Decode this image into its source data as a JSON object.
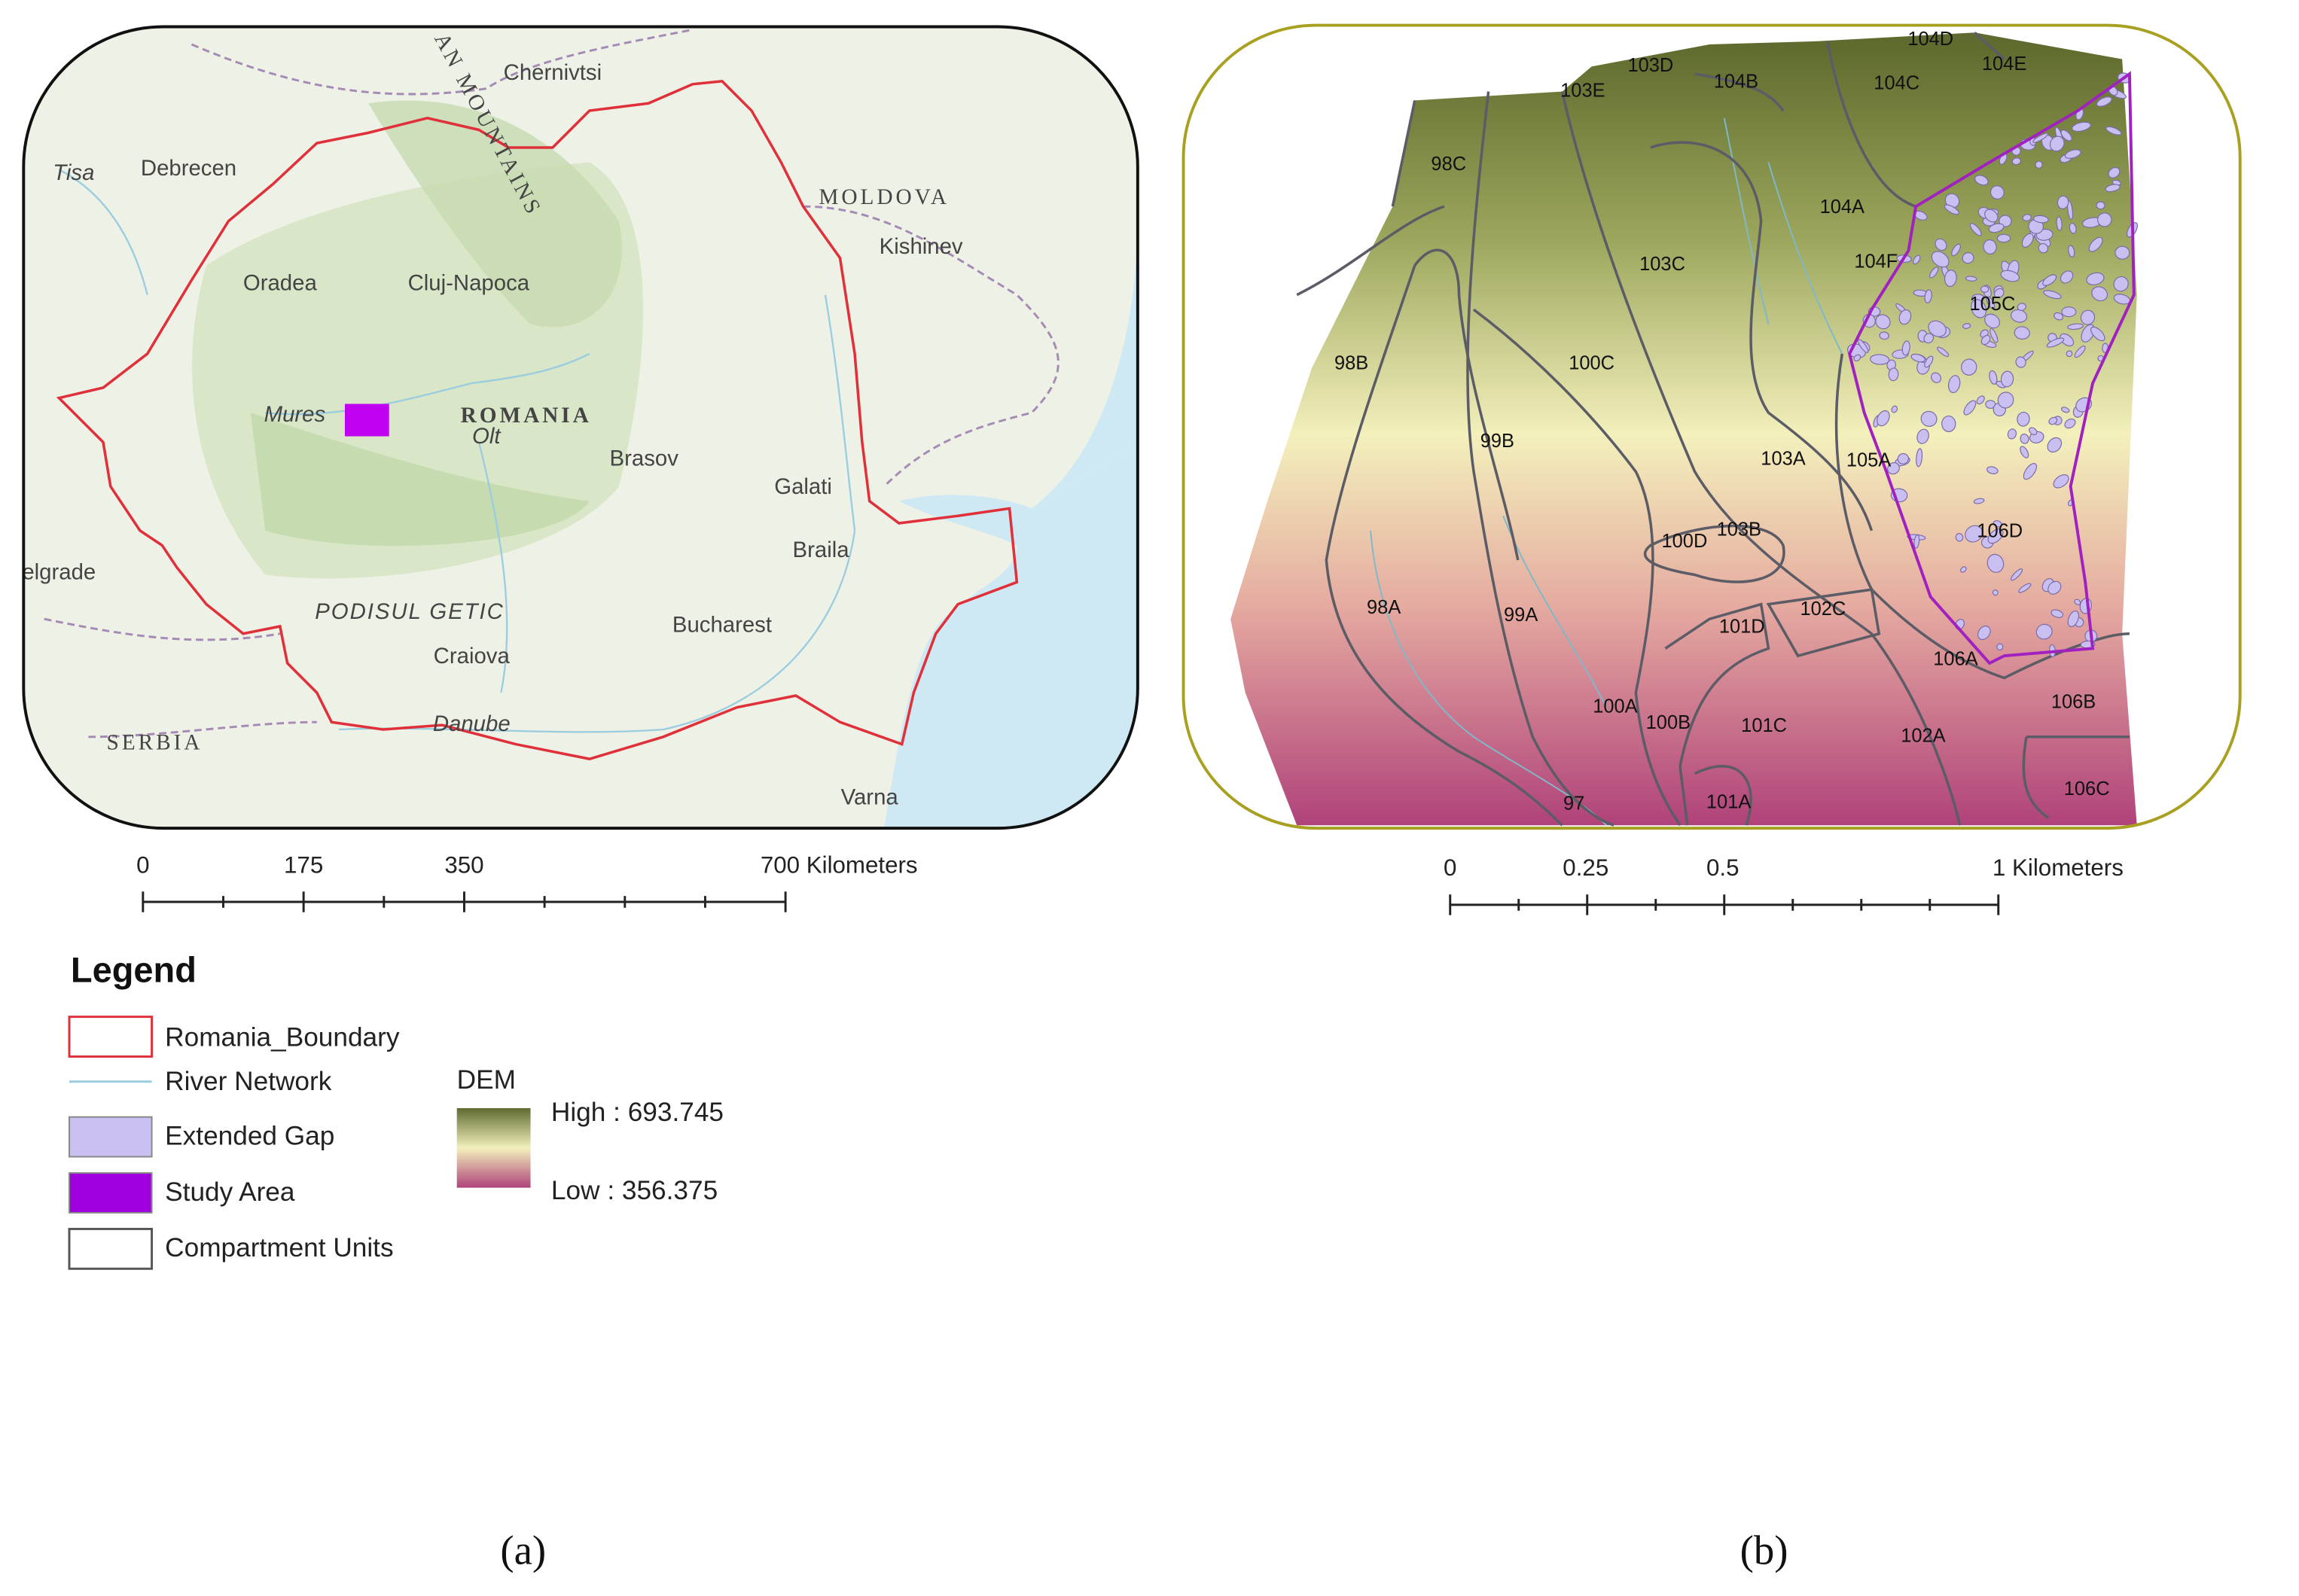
{
  "map_a": {
    "labels": [
      "AN MOUNTAINS",
      "Chernivtsi",
      "Debrecen",
      "Tisa",
      "MOLDOVA",
      "Kishinev",
      "Oradea",
      "Cluj-Napoca",
      "Mures",
      "ROMANIA",
      "Olt",
      "Brasov",
      "Galati",
      "Braila",
      "elgrade",
      "PODISUL GETIC",
      "Craiova",
      "Bucharest",
      "Danube",
      "SERBIA",
      "Varna"
    ],
    "scale_labels": [
      "0",
      "175",
      "350",
      "700 Kilometers"
    ],
    "panel_label": "(a)"
  },
  "map_b": {
    "compartments": [
      "104D",
      "103D",
      "104B",
      "104C",
      "104E",
      "103E",
      "98C",
      "104A",
      "103C",
      "104F",
      "105C",
      "98B",
      "100C",
      "99B",
      "103A",
      "105A",
      "100D",
      "103B",
      "106D",
      "98A",
      "99A",
      "101D",
      "102C",
      "106A",
      "100A",
      "100B",
      "101C",
      "102A",
      "106B",
      "97",
      "101A",
      "106C"
    ],
    "scale_labels": [
      "0",
      "0.25",
      "0.5",
      "1 Kilometers"
    ],
    "panel_label": "(b)"
  },
  "legend": {
    "title": "Legend",
    "items": [
      "Romania_Boundary",
      "River Network",
      "Extended Gap",
      "Study Area",
      "Compartment Units"
    ],
    "dem_title": "DEM",
    "dem_high": "High : 693.745",
    "dem_low": "Low : 356.375"
  }
}
